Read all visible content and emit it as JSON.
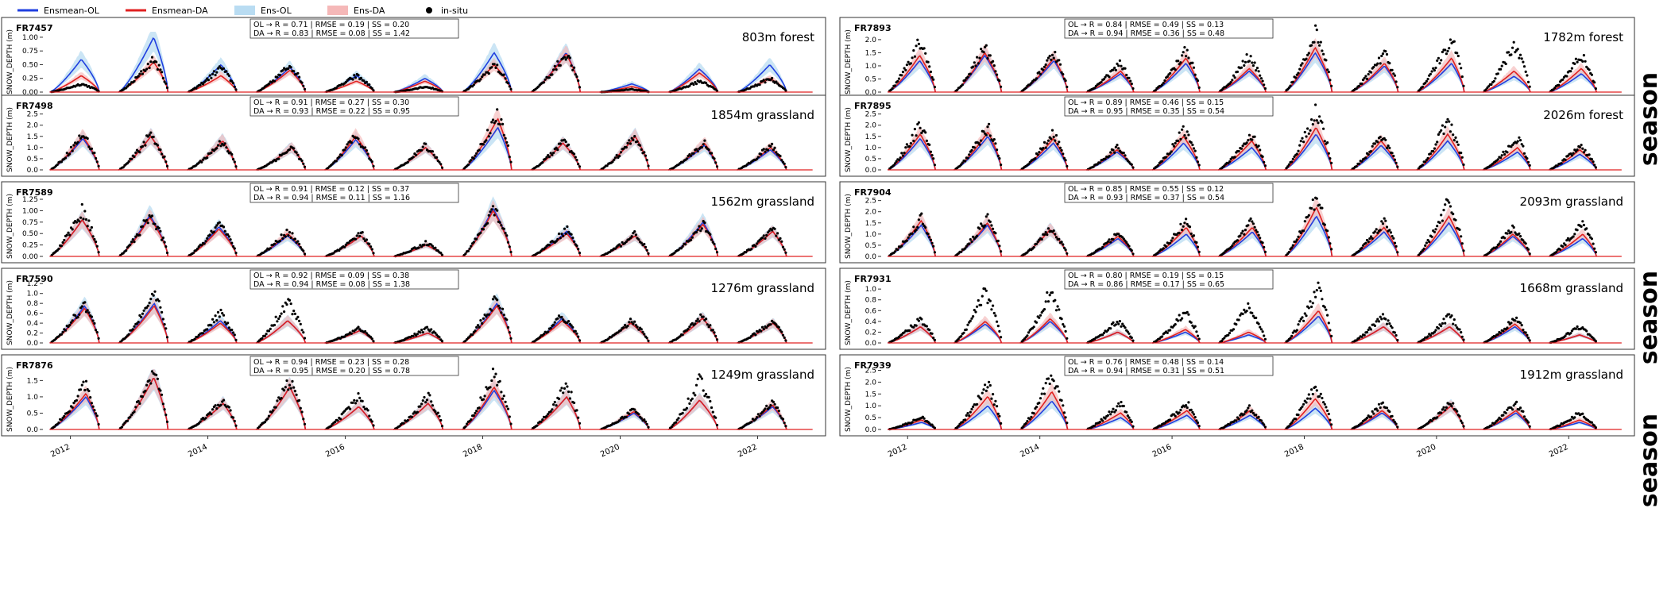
{
  "legend": {
    "items": [
      {
        "label": "Ensmean-OL",
        "kind": "line",
        "color": "#1f3fe0"
      },
      {
        "label": "Ensmean-DA",
        "kind": "line",
        "color": "#e02020"
      },
      {
        "label": "Ens-OL",
        "kind": "band",
        "color": "#b9dcf2"
      },
      {
        "label": "Ens-DA",
        "kind": "band",
        "color": "#f5b8b8"
      },
      {
        "label": "in-situ",
        "kind": "dot",
        "color": "#000000"
      }
    ]
  },
  "side_labels": [
    "season",
    "season",
    "season"
  ],
  "colors": {
    "ol": "#1f3fe0",
    "da": "#e02020",
    "ens_ol": "#b9dcf2",
    "ens_da": "#f5b8b8",
    "obs": "#000000"
  },
  "chart_data": [
    {
      "type": "line",
      "station": "FR7457",
      "site": "803m forest",
      "ylabel": "SNOW_DEPTH (m)",
      "ylim": [
        0,
        1.1
      ],
      "yticks": [
        "0.00",
        "0.25",
        "0.50",
        "0.75",
        "1.00"
      ],
      "ytick_values": [
        0,
        0.25,
        0.5,
        0.75,
        1.0
      ],
      "stats": [
        "OL → R = 0.71 | RMSE = 0.19 | SS = 0.20",
        "DA → R = 0.83 | RMSE = 0.08 | SS = 1.42"
      ],
      "x": [
        "2012",
        "2013",
        "2014",
        "2015",
        "2016",
        "2017",
        "2018",
        "2019",
        "2020",
        "2021",
        "2022"
      ],
      "peak_ol": [
        0.6,
        1.0,
        0.5,
        0.45,
        0.3,
        0.25,
        0.72,
        0.72,
        0.15,
        0.42,
        0.5
      ],
      "peak_da": [
        0.3,
        0.55,
        0.3,
        0.4,
        0.2,
        0.2,
        0.5,
        0.7,
        0.1,
        0.35,
        0.25
      ],
      "peak_obs": [
        0.15,
        0.6,
        0.45,
        0.5,
        0.3,
        0.1,
        0.5,
        0.7,
        0.05,
        0.2,
        0.25
      ]
    },
    {
      "type": "line",
      "station": "FR7498",
      "site": "1854m grassland",
      "ylabel": "SNOW_DEPTH (m)",
      "ylim": [
        0,
        2.7
      ],
      "yticks": [
        "0.0",
        "0.5",
        "1.0",
        "1.5",
        "2.0",
        "2.5"
      ],
      "ytick_values": [
        0,
        0.5,
        1,
        1.5,
        2,
        2.5
      ],
      "stats": [
        "OL → R = 0.91 | RMSE = 0.27 | SS = 0.30",
        "DA → R = 0.93 | RMSE = 0.22 | SS = 0.95"
      ],
      "x": [
        "2012",
        "2013",
        "2014",
        "2015",
        "2016",
        "2017",
        "2018",
        "2019",
        "2020",
        "2021",
        "2022"
      ],
      "peak_ol": [
        1.4,
        1.5,
        1.3,
        1.0,
        1.35,
        1.0,
        1.9,
        1.2,
        1.5,
        1.1,
        0.9
      ],
      "peak_da": [
        1.5,
        1.5,
        1.3,
        1.0,
        1.5,
        1.0,
        2.3,
        1.2,
        1.5,
        1.2,
        1.0
      ],
      "peak_obs": [
        1.6,
        1.6,
        1.3,
        1.0,
        1.5,
        1.1,
        2.5,
        1.3,
        1.5,
        1.2,
        1.1
      ]
    },
    {
      "type": "line",
      "station": "FR7589",
      "site": "1562m grassland",
      "ylabel": "SNOW_DEPTH (m)",
      "ylim": [
        0,
        1.32
      ],
      "yticks": [
        "0.00",
        "0.25",
        "0.50",
        "0.75",
        "1.00",
        "1.25"
      ],
      "ytick_values": [
        0,
        0.25,
        0.5,
        0.75,
        1,
        1.25
      ],
      "stats": [
        "OL → R = 0.91 | RMSE = 0.12 | SS = 0.37",
        "DA → R = 0.94 | RMSE = 0.11 | SS = 1.16"
      ],
      "x": [
        "2012",
        "2013",
        "2014",
        "2015",
        "2016",
        "2017",
        "2018",
        "2019",
        "2020",
        "2021",
        "2022"
      ],
      "peak_ol": [
        0.8,
        0.9,
        0.65,
        0.45,
        0.45,
        0.25,
        1.05,
        0.55,
        0.45,
        0.75,
        0.55
      ],
      "peak_da": [
        0.8,
        0.85,
        0.6,
        0.5,
        0.45,
        0.25,
        1.0,
        0.5,
        0.45,
        0.7,
        0.55
      ],
      "peak_obs": [
        1.0,
        0.9,
        0.7,
        0.55,
        0.5,
        0.3,
        1.1,
        0.6,
        0.5,
        0.7,
        0.6
      ]
    },
    {
      "type": "line",
      "station": "FR7590",
      "site": "1276m grassland",
      "ylabel": "SNOW_DEPTH (m)",
      "ylim": [
        0,
        1.22
      ],
      "yticks": [
        "0.0",
        "0.2",
        "0.4",
        "0.6",
        "0.8",
        "1.0",
        "1.2"
      ],
      "ytick_values": [
        0,
        0.2,
        0.4,
        0.6,
        0.8,
        1.0,
        1.2
      ],
      "stats": [
        "OL → R = 0.92 | RMSE = 0.09 | SS = 0.38",
        "DA → R = 0.94 | RMSE = 0.08 | SS = 1.38"
      ],
      "x": [
        "2012",
        "2013",
        "2014",
        "2015",
        "2016",
        "2017",
        "2018",
        "2019",
        "2020",
        "2021",
        "2022"
      ],
      "peak_ol": [
        0.75,
        0.8,
        0.45,
        0.45,
        0.25,
        0.2,
        0.8,
        0.5,
        0.4,
        0.5,
        0.4
      ],
      "peak_da": [
        0.7,
        0.75,
        0.4,
        0.45,
        0.25,
        0.2,
        0.75,
        0.45,
        0.4,
        0.5,
        0.4
      ],
      "peak_obs": [
        0.8,
        1.0,
        0.6,
        0.85,
        0.3,
        0.3,
        0.9,
        0.55,
        0.45,
        0.55,
        0.45
      ]
    },
    {
      "type": "line",
      "station": "FR7876",
      "site": "1249m grassland",
      "ylabel": "SNOW_DEPTH (m)",
      "ylim": [
        0,
        1.85
      ],
      "yticks": [
        "0.0",
        "0.5",
        "1.0",
        "1.5"
      ],
      "ytick_values": [
        0,
        0.5,
        1,
        1.5
      ],
      "stats": [
        "OL → R = 0.94 | RMSE = 0.23 | SS = 0.28",
        "DA → R = 0.95 | RMSE = 0.20 | SS = 0.78"
      ],
      "x": [
        "2012",
        "2013",
        "2014",
        "2015",
        "2016",
        "2017",
        "2018",
        "2019",
        "2020",
        "2021",
        "2022"
      ],
      "peak_ol": [
        1.0,
        1.6,
        0.8,
        1.3,
        0.7,
        0.8,
        1.2,
        1.0,
        0.5,
        0.9,
        0.7
      ],
      "peak_da": [
        1.1,
        1.6,
        0.8,
        1.3,
        0.7,
        0.8,
        1.3,
        1.0,
        0.55,
        0.9,
        0.75
      ],
      "peak_obs": [
        1.4,
        1.75,
        0.9,
        1.5,
        1.0,
        1.0,
        1.75,
        1.35,
        0.6,
        1.5,
        0.8
      ]
    },
    {
      "type": "line",
      "station": "FR7893",
      "site": "1782m forest",
      "ylabel": "SNOW_DEPTH (m)",
      "ylim": [
        0,
        2.3
      ],
      "yticks": [
        "0.0",
        "0.5",
        "1.0",
        "1.5",
        "2.0"
      ],
      "ytick_values": [
        0,
        0.5,
        1,
        1.5,
        2
      ],
      "stats": [
        "OL → R = 0.84 | RMSE = 0.49 | SS = 0.13",
        "DA → R = 0.94 | RMSE = 0.36 | SS = 0.48"
      ],
      "x": [
        "2012",
        "2013",
        "2014",
        "2015",
        "2016",
        "2017",
        "2018",
        "2019",
        "2020",
        "2021",
        "2022"
      ],
      "peak_ol": [
        1.2,
        1.4,
        1.2,
        0.7,
        1.1,
        0.8,
        1.5,
        1.0,
        1.1,
        0.6,
        0.7
      ],
      "peak_da": [
        1.4,
        1.5,
        1.3,
        0.8,
        1.3,
        0.9,
        1.7,
        1.1,
        1.3,
        0.8,
        0.9
      ],
      "peak_obs": [
        1.9,
        1.7,
        1.5,
        1.1,
        1.6,
        1.4,
        2.25,
        1.5,
        2.1,
        1.8,
        1.4
      ]
    },
    {
      "type": "line",
      "station": "FR7895",
      "site": "2026m forest",
      "ylabel": "SNOW_DEPTH (m)",
      "ylim": [
        0,
        2.7
      ],
      "yticks": [
        "0.0",
        "0.5",
        "1.0",
        "1.5",
        "2.0",
        "2.5"
      ],
      "ytick_values": [
        0,
        0.5,
        1,
        1.5,
        2,
        2.5
      ],
      "stats": [
        "OL → R = 0.89 | RMSE = 0.46 | SS = 0.15",
        "DA → R = 0.95 | RMSE = 0.35 | SS = 0.54"
      ],
      "x": [
        "2012",
        "2013",
        "2014",
        "2015",
        "2016",
        "2017",
        "2018",
        "2019",
        "2020",
        "2021",
        "2022"
      ],
      "peak_ol": [
        1.4,
        1.5,
        1.2,
        0.8,
        1.2,
        1.0,
        1.6,
        1.1,
        1.3,
        0.8,
        0.7
      ],
      "peak_da": [
        1.6,
        1.7,
        1.4,
        0.9,
        1.5,
        1.3,
        1.9,
        1.3,
        1.6,
        1.0,
        0.9
      ],
      "peak_obs": [
        2.0,
        1.9,
        1.6,
        1.0,
        1.8,
        1.6,
        2.6,
        1.5,
        2.2,
        1.4,
        1.1
      ]
    },
    {
      "type": "line",
      "station": "FR7904",
      "site": "2093m grassland",
      "ylabel": "SNOW_DEPTH (m)",
      "ylim": [
        0,
        2.7
      ],
      "yticks": [
        "0.0",
        "0.5",
        "1.0",
        "1.5",
        "2.0",
        "2.5"
      ],
      "ytick_values": [
        0,
        0.5,
        1,
        1.5,
        2,
        2.5
      ],
      "stats": [
        "OL → R = 0.85 | RMSE = 0.55 | SS = 0.12",
        "DA → R = 0.93 | RMSE = 0.37 | SS = 0.54"
      ],
      "x": [
        "2012",
        "2013",
        "2014",
        "2015",
        "2016",
        "2017",
        "2018",
        "2019",
        "2020",
        "2021",
        "2022"
      ],
      "peak_ol": [
        1.4,
        1.4,
        1.2,
        0.8,
        1.0,
        1.1,
        1.8,
        1.1,
        1.5,
        0.9,
        0.8
      ],
      "peak_da": [
        1.6,
        1.5,
        1.2,
        0.9,
        1.3,
        1.3,
        2.2,
        1.3,
        1.8,
        1.0,
        1.0
      ],
      "peak_obs": [
        1.7,
        1.7,
        1.2,
        1.0,
        1.6,
        1.6,
        2.6,
        1.6,
        2.5,
        1.3,
        1.5
      ]
    },
    {
      "type": "line",
      "station": "FR7931",
      "site": "1668m grassland",
      "ylabel": "SNOW_DEPTH (m)",
      "ylim": [
        0,
        1.12
      ],
      "yticks": [
        "0.0",
        "0.2",
        "0.4",
        "0.6",
        "0.8",
        "1.0"
      ],
      "ytick_values": [
        0,
        0.2,
        0.4,
        0.6,
        0.8,
        1.0
      ],
      "stats": [
        "OL → R = 0.80 | RMSE = 0.19 | SS = 0.15",
        "DA → R = 0.86 | RMSE = 0.17 | SS = 0.65"
      ],
      "x": [
        "2012",
        "2013",
        "2014",
        "2015",
        "2016",
        "2017",
        "2018",
        "2019",
        "2020",
        "2021",
        "2022"
      ],
      "peak_ol": [
        0.3,
        0.35,
        0.4,
        0.2,
        0.2,
        0.15,
        0.5,
        0.3,
        0.3,
        0.3,
        0.15
      ],
      "peak_da": [
        0.3,
        0.4,
        0.45,
        0.2,
        0.25,
        0.2,
        0.6,
        0.3,
        0.3,
        0.35,
        0.15
      ],
      "peak_obs": [
        0.45,
        0.95,
        0.95,
        0.4,
        0.6,
        0.7,
        1.0,
        0.5,
        0.5,
        0.45,
        0.3
      ]
    },
    {
      "type": "line",
      "station": "FR7939",
      "site": "1912m grassland",
      "ylabel": "SNOW_DEPTH (m)",
      "ylim": [
        0,
        2.55
      ],
      "yticks": [
        "0.0",
        "0.5",
        "1.0",
        "1.5",
        "2.0",
        "2.5"
      ],
      "ytick_values": [
        0,
        0.5,
        1,
        1.5,
        2,
        2.5
      ],
      "stats": [
        "OL → R = 0.76 | RMSE = 0.48 | SS = 0.14",
        "DA → R = 0.94 | RMSE = 0.31 | SS = 0.51"
      ],
      "x": [
        "2012",
        "2013",
        "2014",
        "2015",
        "2016",
        "2017",
        "2018",
        "2019",
        "2020",
        "2021",
        "2022"
      ],
      "peak_ol": [
        0.3,
        1.0,
        1.2,
        0.5,
        0.6,
        0.6,
        0.9,
        0.7,
        1.0,
        0.7,
        0.3
      ],
      "peak_da": [
        0.4,
        1.4,
        1.6,
        0.7,
        0.8,
        0.8,
        1.3,
        0.8,
        1.0,
        0.8,
        0.4
      ],
      "peak_obs": [
        0.5,
        1.9,
        2.3,
        1.1,
        1.1,
        0.9,
        1.8,
        1.1,
        1.1,
        1.1,
        0.7
      ]
    }
  ],
  "xaxis": {
    "ticks": [
      "2012",
      "2014",
      "2016",
      "2018",
      "2020",
      "2022"
    ]
  }
}
